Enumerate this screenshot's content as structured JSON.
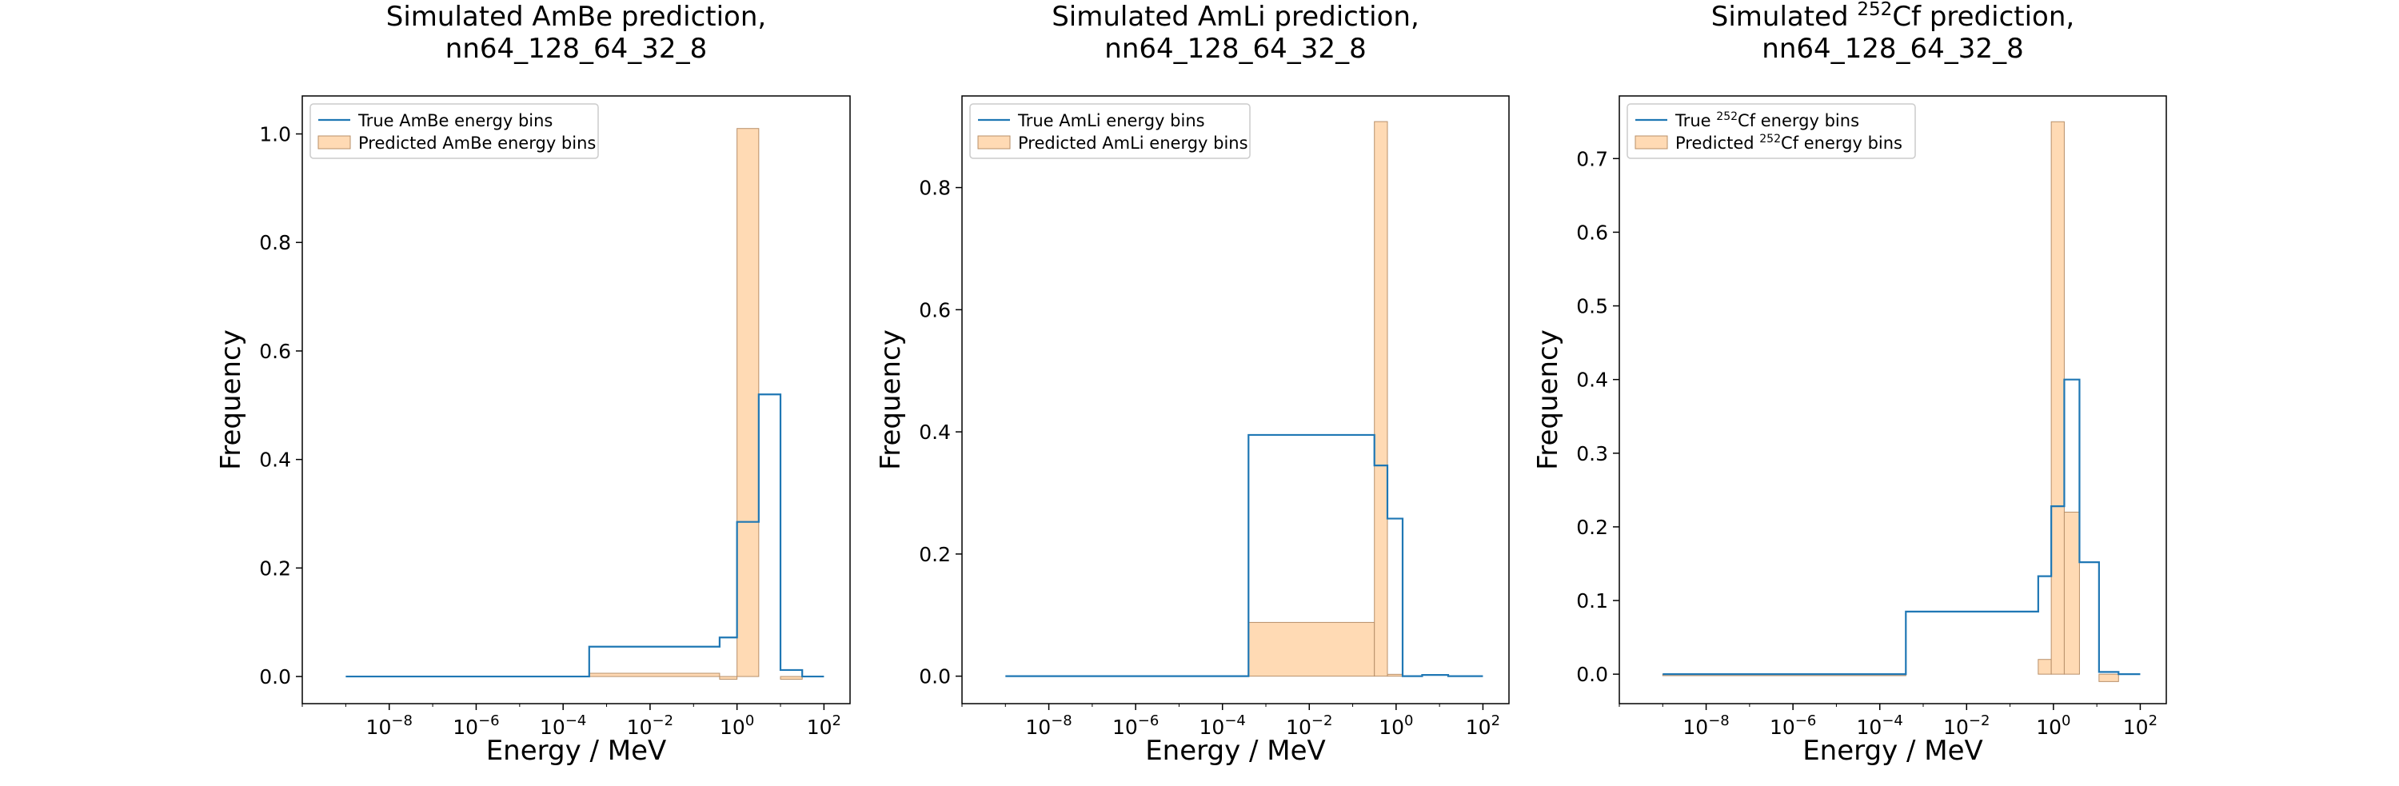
{
  "figure": {
    "xlabel": "Energy / MeV",
    "ylabel": "Frequency"
  },
  "chart_data": [
    {
      "type": "bar",
      "title_line1": "Simulated AmBe prediction,",
      "title_line2": "nn64_128_64_32_8",
      "xlabel": "Energy / MeV",
      "ylabel": "Frequency",
      "xscale": "log",
      "xlim_log10": [
        -10,
        2.6
      ],
      "ylim": [
        -0.05,
        1.07
      ],
      "yticks": [
        0.0,
        0.2,
        0.4,
        0.6,
        0.8,
        1.0
      ],
      "ytick_labels": [
        "0.0",
        "0.2",
        "0.4",
        "0.6",
        "0.8",
        "1.0"
      ],
      "xticks_exp": [
        -8,
        -6,
        -4,
        -2,
        0,
        2
      ],
      "legend": {
        "position": "upper-left",
        "true_label": "True AmBe energy bins",
        "pred_label": "Predicted AmBe energy bins"
      },
      "bin_edges_log10": [
        -9,
        -3.4,
        -0.4,
        0,
        0.5,
        1,
        1.5,
        2
      ],
      "series": [
        {
          "name": "True AmBe energy bins",
          "style": "step",
          "values": [
            0.0,
            0.055,
            0.072,
            0.285,
            0.52,
            0.012,
            0.0
          ]
        },
        {
          "name": "Predicted AmBe energy bins",
          "style": "filled-bar",
          "values": [
            0.0,
            0.006,
            -0.005,
            1.01,
            0.0,
            -0.005,
            0.0
          ]
        }
      ]
    },
    {
      "type": "bar",
      "title_line1": "Simulated AmLi prediction,",
      "title_line2": "nn64_128_64_32_8",
      "xlabel": "Energy / MeV",
      "ylabel": "Frequency",
      "xscale": "log",
      "xlim_log10": [
        -10,
        2.6
      ],
      "ylim": [
        -0.045,
        0.95
      ],
      "yticks": [
        0.0,
        0.2,
        0.4,
        0.6,
        0.8
      ],
      "ytick_labels": [
        "0.0",
        "0.2",
        "0.4",
        "0.6",
        "0.8"
      ],
      "xticks_exp": [
        -8,
        -6,
        -4,
        -2,
        0,
        2
      ],
      "legend": {
        "position": "upper-left",
        "true_label": "True AmLi energy bins",
        "pred_label": "Predicted AmLi energy bins"
      },
      "bin_edges_log10": [
        -9,
        -3.4,
        -0.5,
        -0.2,
        0.15,
        0.6,
        1.2,
        2
      ],
      "series": [
        {
          "name": "True AmLi energy bins",
          "style": "step",
          "values": [
            0.0,
            0.395,
            0.345,
            0.258,
            0.0,
            0.002,
            0.0
          ]
        },
        {
          "name": "Predicted AmLi energy bins",
          "style": "filled-bar",
          "values": [
            0.0,
            0.088,
            0.908,
            0.003,
            0.0,
            0.0,
            0.0
          ]
        }
      ]
    },
    {
      "type": "bar",
      "title_line1": "Simulated ",
      "title_sup": "252",
      "title_line1b": "Cf prediction,",
      "title_line2": "nn64_128_64_32_8",
      "xlabel": "Energy / MeV",
      "ylabel": "Frequency",
      "xscale": "log",
      "xlim_log10": [
        -10,
        2.6
      ],
      "ylim": [
        -0.04,
        0.785
      ],
      "yticks": [
        0.0,
        0.1,
        0.2,
        0.3,
        0.4,
        0.5,
        0.6,
        0.7
      ],
      "ytick_labels": [
        "0.0",
        "0.1",
        "0.2",
        "0.3",
        "0.4",
        "0.5",
        "0.6",
        "0.7"
      ],
      "xticks_exp": [
        -8,
        -6,
        -4,
        -2,
        0,
        2
      ],
      "legend": {
        "position": "upper-left",
        "true_prefix": "True ",
        "pred_prefix": "Predicted ",
        "sup": "252",
        "suffix": "Cf energy bins"
      },
      "bin_edges_log10": [
        -9,
        -3.4,
        -0.35,
        -0.05,
        0.25,
        0.6,
        1.05,
        1.5,
        2
      ],
      "series": [
        {
          "name": "True 252Cf energy bins",
          "style": "step",
          "values": [
            0.0,
            0.085,
            0.133,
            0.228,
            0.4,
            0.152,
            0.003,
            0.0
          ]
        },
        {
          "name": "Predicted 252Cf energy bins",
          "style": "filled-bar",
          "values": [
            -0.002,
            0.0,
            0.02,
            0.75,
            0.22,
            0.0,
            -0.01,
            0.0
          ]
        }
      ]
    }
  ],
  "colors": {
    "true_line": "#1f77b4",
    "pred_fill": "#ffdab4",
    "pred_edge": "#b8906a",
    "axis": "#000000",
    "legend_border": "#cccccc"
  }
}
